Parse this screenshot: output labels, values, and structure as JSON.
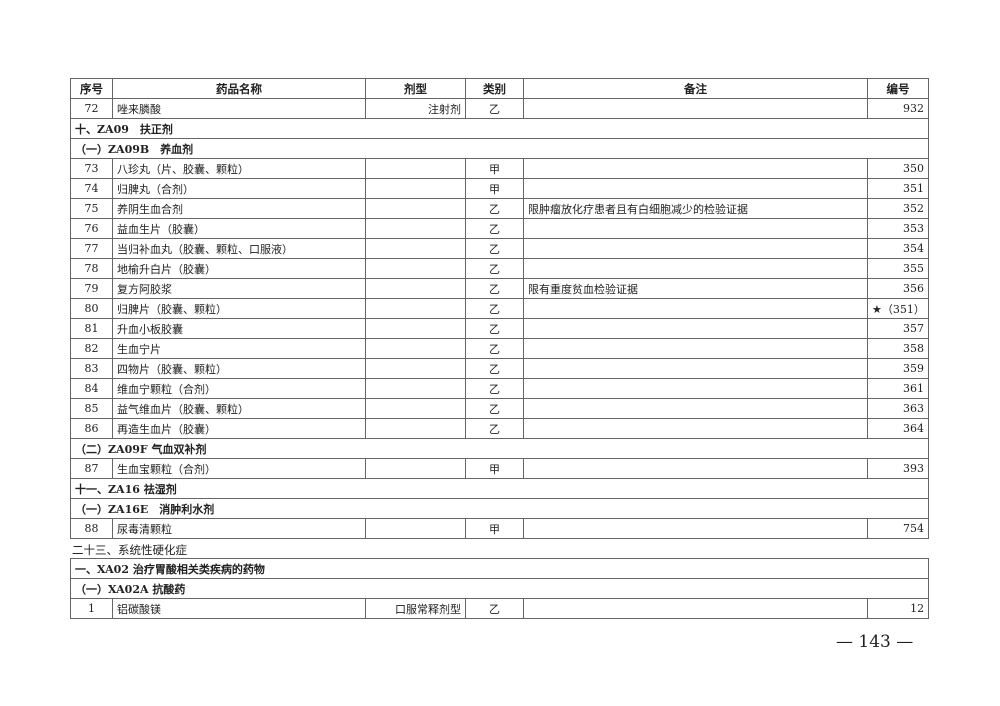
{
  "header": {
    "no": "序号",
    "name": "药品名称",
    "form": "剂型",
    "cat": "类别",
    "note": "备注",
    "code": "编号"
  },
  "table1": [
    {
      "no": "72",
      "name": "唑来膦酸",
      "form": "注射剂",
      "cat": "乙",
      "note": "",
      "code": "932"
    },
    {
      "section": "十、ZA09　扶正剂"
    },
    {
      "section": "（一）ZA09B　养血剂"
    },
    {
      "no": "73",
      "name": "八珍丸（片、胶囊、颗粒）",
      "form": "",
      "cat": "甲",
      "note": "",
      "code": "350"
    },
    {
      "no": "74",
      "name": "归脾丸（合剂）",
      "form": "",
      "cat": "甲",
      "note": "",
      "code": "351"
    },
    {
      "no": "75",
      "name": "养阴生血合剂",
      "form": "",
      "cat": "乙",
      "note": "限肿瘤放化疗患者且有白细胞减少的检验证据",
      "code": "352"
    },
    {
      "no": "76",
      "name": "益血生片（胶囊）",
      "form": "",
      "cat": "乙",
      "note": "",
      "code": "353"
    },
    {
      "no": "77",
      "name": "当归补血丸（胶囊、颗粒、口服液）",
      "form": "",
      "cat": "乙",
      "note": "",
      "code": "354"
    },
    {
      "no": "78",
      "name": "地榆升白片（胶囊）",
      "form": "",
      "cat": "乙",
      "note": "",
      "code": "355"
    },
    {
      "no": "79",
      "name": "复方阿胶浆",
      "form": "",
      "cat": "乙",
      "note": "限有重度贫血检验证据",
      "code": "356"
    },
    {
      "no": "80",
      "name": "归脾片（胶囊、颗粒）",
      "form": "",
      "cat": "乙",
      "note": "",
      "code": "★（351）"
    },
    {
      "no": "81",
      "name": "升血小板胶囊",
      "form": "",
      "cat": "乙",
      "note": "",
      "code": "357"
    },
    {
      "no": "82",
      "name": "生血宁片",
      "form": "",
      "cat": "乙",
      "note": "",
      "code": "358"
    },
    {
      "no": "83",
      "name": "四物片（胶囊、颗粒）",
      "form": "",
      "cat": "乙",
      "note": "",
      "code": "359"
    },
    {
      "no": "84",
      "name": "维血宁颗粒（合剂）",
      "form": "",
      "cat": "乙",
      "note": "",
      "code": "361"
    },
    {
      "no": "85",
      "name": "益气维血片（胶囊、颗粒）",
      "form": "",
      "cat": "乙",
      "note": "",
      "code": "363"
    },
    {
      "no": "86",
      "name": "再造生血片（胶囊）",
      "form": "",
      "cat": "乙",
      "note": "",
      "code": "364"
    },
    {
      "section": "（二）ZA09F 气血双补剂"
    },
    {
      "no": "87",
      "name": "生血宝颗粒（合剂）",
      "form": "",
      "cat": "甲",
      "note": "",
      "code": "393"
    },
    {
      "section": "十一、ZA16 祛湿剂"
    },
    {
      "section": "（一）ZA16E　消肿利水剂"
    },
    {
      "no": "88",
      "name": "尿毒清颗粒",
      "form": "",
      "cat": "甲",
      "note": "",
      "code": "754"
    }
  ],
  "heading": "二十三、系统性硬化症",
  "table2": [
    {
      "section": "一、XA02 治疗胃酸相关类疾病的药物"
    },
    {
      "section": "（一）XA02A 抗酸药"
    },
    {
      "no": "1",
      "name": "铝碳酸镁",
      "form": "口服常释剂型",
      "cat": "乙",
      "note": "",
      "code": "12"
    }
  ],
  "page_number": "— 143 —"
}
